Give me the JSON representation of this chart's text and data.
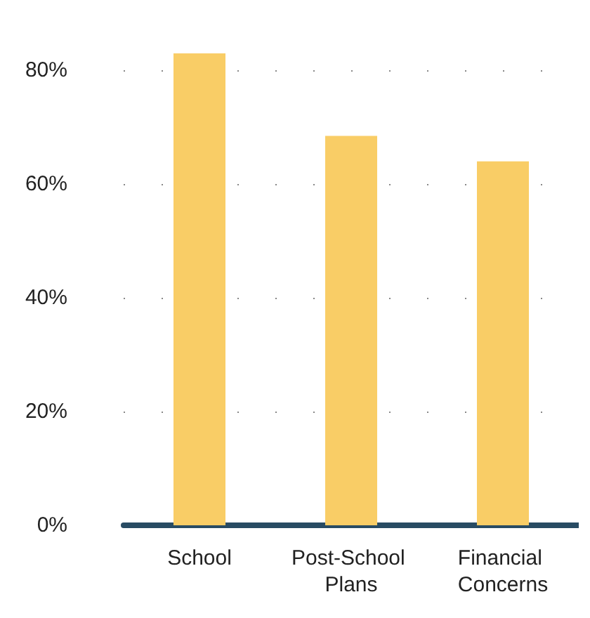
{
  "chart_data": {
    "type": "bar",
    "categories": [
      "School",
      "Post-School Plans",
      "Financial Concerns"
    ],
    "values": [
      83,
      68.5,
      64
    ],
    "color": "#f9cd66",
    "ylim": [
      0,
      83
    ],
    "yticks": [
      {
        "value": 0,
        "label": "0%"
      },
      {
        "value": 20,
        "label": "20%"
      },
      {
        "value": 40,
        "label": "40%"
      },
      {
        "value": 60,
        "label": "60%"
      },
      {
        "value": 80,
        "label": "80%"
      }
    ],
    "grid": "y"
  }
}
